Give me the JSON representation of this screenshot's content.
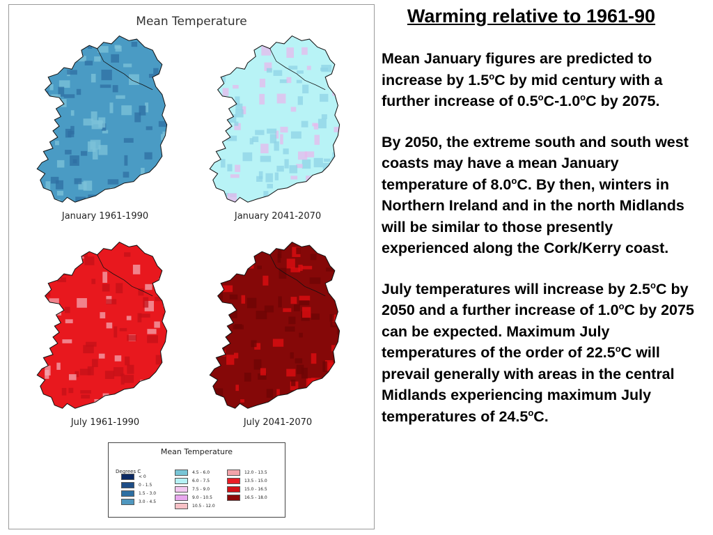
{
  "figure": {
    "title": "Mean Temperature",
    "maps": [
      {
        "caption": "January 1961-1990",
        "base": "#4a9bc4",
        "dark": "#2f6fa3",
        "light": "#7dc3d9"
      },
      {
        "caption": "January 2041-2070",
        "base": "#b8f3f6",
        "dark": "#8fd3e6",
        "light": "#e7b9ec"
      },
      {
        "caption": "July 1961-1990",
        "base": "#e8181e",
        "dark": "#c41018",
        "light": "#f4a6b0"
      },
      {
        "caption": "July 2041-2070",
        "base": "#850808",
        "dark": "#6e0404",
        "light": "#e30d12"
      }
    ],
    "legend": {
      "title": "Mean Temperature",
      "unit": "Degrees C",
      "items": [
        {
          "label": "< 0",
          "color": "#0c2a64"
        },
        {
          "label": "0 - 1.5",
          "color": "#1e4d86"
        },
        {
          "label": "1.5 - 3.0",
          "color": "#2e6fa2"
        },
        {
          "label": "3.0 - 4.5",
          "color": "#4f97bf"
        },
        {
          "label": "4.5 - 6.0",
          "color": "#78c5d6"
        },
        {
          "label": "6.0 - 7.5",
          "color": "#b5f1f5"
        },
        {
          "label": "7.5 - 9.0",
          "color": "#f3c8f1"
        },
        {
          "label": "9.0 - 10.5",
          "color": "#e8a8ee"
        },
        {
          "label": "10.5 - 12.0",
          "color": "#f7c1c6"
        },
        {
          "label": "12.0 - 13.5",
          "color": "#f3a4aa"
        },
        {
          "label": "13.5 - 15.0",
          "color": "#ea1d25"
        },
        {
          "label": "15.0 - 16.5",
          "color": "#d21117"
        },
        {
          "label": "16.5 - 18.0",
          "color": "#8d0808"
        }
      ]
    }
  },
  "article": {
    "heading": "Warming relative to 1961-90",
    "paragraphs": [
      {
        "segments": [
          "Mean January figures are predicted to increase by 1.5",
          "o",
          "C by mid century with a further increase of 0.5",
          "o",
          "C-1.0",
          "o",
          "C by 2075."
        ]
      },
      {
        "segments": [
          "By 2050, the extreme south and south west coasts may have a mean January temperature of 8.0",
          "o",
          "C. By then, winters in Northern Ireland and in the north Midlands will be similar to those presently experienced along the Cork/Kerry coast."
        ]
      },
      {
        "segments": [
          "July temperatures will increase by 2.5",
          "o",
          "C by 2050 and a further increase of 1.0",
          "o",
          "C by 2075 can be expected. Maximum July temperatures of the order of 22.5",
          "o",
          "C will prevail generally with areas in the central Midlands experiencing maximum July temperatures of 24.5",
          "o",
          "C."
        ]
      }
    ]
  }
}
